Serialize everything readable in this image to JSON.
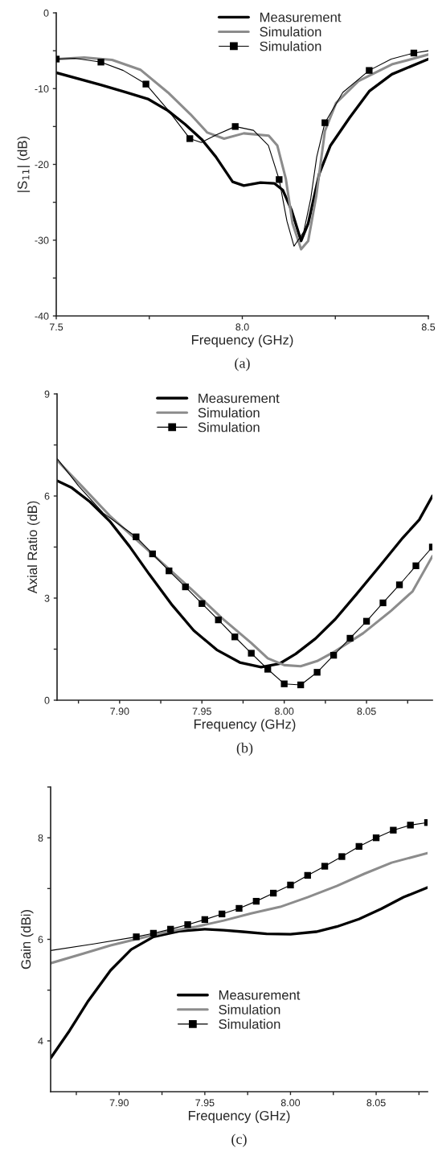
{
  "chart_data": [
    {
      "type": "line",
      "xlabel": "Frequency (GHz)",
      "ylabel": "|S$_{11}$| (dB)",
      "annotations": [
        "(a)"
      ],
      "legend": "top right",
      "grid": false,
      "xlim": [
        7.5,
        8.5
      ],
      "xticks": [
        {
          "value": 7.5,
          "label": "7.5"
        },
        {
          "value": 7.75,
          "label": null
        },
        {
          "value": 8.0,
          "label": "8.0"
        },
        {
          "value": 8.25,
          "label": null
        },
        {
          "value": 8.5,
          "label": "8.5"
        }
      ],
      "ylim": [
        -40,
        0
      ],
      "yticks": [
        -40,
        {
          "value": -35,
          "label": null
        },
        -30,
        {
          "value": -25,
          "label": null
        },
        -20,
        {
          "value": -15,
          "label": null
        },
        -10,
        {
          "value": -5,
          "label": null
        },
        0
      ],
      "series": [
        {
          "name": "Measurement",
          "color": "#000000",
          "x": [
            7.5,
            7.62,
            7.688,
            7.748,
            7.8,
            7.846,
            7.891,
            7.929,
            7.974,
            8.004,
            8.049,
            8.086,
            8.109,
            8.132,
            8.158,
            8.177,
            8.207,
            8.237,
            8.289,
            8.342,
            8.402,
            8.5
          ],
          "values": [
            -7.9,
            -9.5,
            -10.5,
            -11.4,
            -12.9,
            -14.7,
            -16.7,
            -19.0,
            -22.3,
            -22.8,
            -22.4,
            -22.5,
            -23.4,
            -26.0,
            -30.1,
            -27.8,
            -21.2,
            -17.5,
            -13.8,
            -10.3,
            -8.1,
            -6.1
          ]
        },
        {
          "name": "Simulation",
          "color": "#8c8c8c",
          "x": [
            7.5,
            7.575,
            7.65,
            7.726,
            7.8,
            7.861,
            7.906,
            7.951,
            8.004,
            8.071,
            8.094,
            8.117,
            8.135,
            8.158,
            8.177,
            8.199,
            8.222,
            8.252,
            8.312,
            8.402,
            8.5
          ],
          "values": [
            -6.1,
            -5.9,
            -6.2,
            -7.5,
            -10.5,
            -13.4,
            -15.8,
            -16.6,
            -15.9,
            -16.2,
            -17.5,
            -21.9,
            -27.8,
            -31.2,
            -30.1,
            -24.1,
            -15.6,
            -11.9,
            -9.0,
            -6.8,
            -5.5
          ]
        },
        {
          "color": "#000000",
          "x": [
            7.5,
            7.55,
            7.62,
            7.68,
            7.741,
            7.8,
            7.859,
            7.89,
            7.93,
            7.981,
            8.03,
            8.07,
            8.099,
            8.12,
            8.139,
            8.165,
            8.184,
            8.2,
            8.222,
            8.27,
            8.341,
            8.4,
            8.461,
            8.5
          ],
          "values": [
            -6.1,
            -6.0,
            -6.5,
            -7.6,
            -9.4,
            -12.8,
            -16.6,
            -17.1,
            -16.1,
            -15.0,
            -15.5,
            -17.5,
            -22.0,
            -27.5,
            -30.8,
            -28.9,
            -24.5,
            -19.0,
            -14.5,
            -10.5,
            -7.6,
            -6.1,
            -5.3,
            -5.0
          ]
        },
        {
          "name": "Simulation",
          "color": "#000000",
          "type": "scatter",
          "marker": "square",
          "x": [
            7.5,
            7.62,
            7.741,
            7.859,
            7.981,
            8.099,
            8.222,
            8.341,
            8.461
          ],
          "values": [
            -6.1,
            -6.5,
            -9.4,
            -16.6,
            -15.0,
            -22.0,
            -14.5,
            -7.6,
            -5.3
          ]
        }
      ]
    },
    {
      "type": "line",
      "xlabel": "Frequency (GHz)",
      "ylabel": "Axial Ratio (dB)",
      "annotations": [
        "(b)"
      ],
      "legend": "top",
      "grid": false,
      "xlim": [
        7.862,
        8.09
      ],
      "xticks": [
        {
          "value": 7.875,
          "label": null
        },
        {
          "value": 7.9,
          "label": "7.90"
        },
        {
          "value": 7.925,
          "label": null
        },
        {
          "value": 7.95,
          "label": "7.95"
        },
        {
          "value": 7.975,
          "label": null
        },
        {
          "value": 8.0,
          "label": "8.00"
        },
        {
          "value": 8.025,
          "label": null
        },
        {
          "value": 8.05,
          "label": "8.05"
        },
        {
          "value": 8.075,
          "label": null
        }
      ],
      "ylim": [
        0,
        9
      ],
      "yticks": [
        0,
        {
          "value": 1.5,
          "label": null
        },
        3,
        {
          "value": 4.5,
          "label": null
        },
        6,
        {
          "value": 7.5,
          "label": null
        },
        9
      ],
      "series": [
        {
          "name": "Measurement",
          "color": "#000000",
          "x": [
            7.862,
            7.871,
            7.882,
            7.894,
            7.906,
            7.918,
            7.932,
            7.945,
            7.959,
            7.973,
            7.986,
            7.997,
            8.007,
            8.019,
            8.031,
            8.044,
            8.058,
            8.072,
            8.082,
            8.09
          ],
          "values": [
            6.45,
            6.24,
            5.83,
            5.26,
            4.52,
            3.7,
            2.79,
            2.05,
            1.48,
            1.11,
            0.97,
            1.07,
            1.36,
            1.81,
            2.38,
            3.12,
            3.94,
            4.77,
            5.3,
            6.0
          ]
        },
        {
          "name": "Simulation",
          "color": "#8c8c8c",
          "x": [
            7.862,
            7.878,
            7.894,
            7.911,
            7.928,
            7.945,
            7.962,
            7.98,
            7.99,
            8.0,
            8.01,
            8.02,
            8.031,
            8.048,
            8.065,
            8.078,
            8.09
          ],
          "values": [
            7.05,
            6.24,
            5.42,
            4.68,
            3.94,
            3.2,
            2.42,
            1.68,
            1.23,
            1.03,
            1.0,
            1.15,
            1.44,
            1.97,
            2.63,
            3.2,
            4.23
          ]
        },
        {
          "color": "#000000",
          "x": [
            7.862,
            7.875,
            7.89,
            7.91,
            7.92,
            7.93,
            7.94,
            7.95,
            7.96,
            7.97,
            7.98,
            7.99,
            8.0,
            8.01,
            8.02,
            8.03,
            8.04,
            8.05,
            8.06,
            8.07,
            8.08,
            8.09
          ],
          "values": [
            7.1,
            6.3,
            5.5,
            4.8,
            4.3,
            3.8,
            3.33,
            2.84,
            2.36,
            1.86,
            1.38,
            0.91,
            0.48,
            0.45,
            0.82,
            1.32,
            1.82,
            2.32,
            2.86,
            3.39,
            3.95,
            4.5
          ]
        },
        {
          "name": "Simulation",
          "color": "#000000",
          "type": "scatter",
          "marker": "square",
          "x": [
            7.91,
            7.92,
            7.93,
            7.94,
            7.95,
            7.96,
            7.97,
            7.98,
            7.99,
            8.0,
            8.01,
            8.02,
            8.03,
            8.04,
            8.05,
            8.06,
            8.07,
            8.08,
            8.09
          ],
          "values": [
            4.8,
            4.3,
            3.8,
            3.33,
            2.84,
            2.36,
            1.86,
            1.38,
            0.91,
            0.48,
            0.45,
            0.82,
            1.32,
            1.82,
            2.32,
            2.86,
            3.39,
            3.95,
            4.5
          ]
        }
      ]
    },
    {
      "type": "line",
      "xlabel": "Frequency (GHz)",
      "ylabel": "Gain (dBi)",
      "annotations": [
        "(c)"
      ],
      "legend": "bottom",
      "grid": false,
      "xlim": [
        7.86,
        8.08
      ],
      "xticks": [
        {
          "value": 7.875,
          "label": null
        },
        {
          "value": 7.9,
          "label": "7.90"
        },
        {
          "value": 7.925,
          "label": null
        },
        {
          "value": 7.95,
          "label": "7.95"
        },
        {
          "value": 7.975,
          "label": null
        },
        {
          "value": 8.0,
          "label": "8.00"
        },
        {
          "value": 8.025,
          "label": null
        },
        {
          "value": 8.05,
          "label": "8.05"
        },
        {
          "value": 8.075,
          "label": null
        }
      ],
      "ylim": [
        3,
        9
      ],
      "yticks": [
        4,
        {
          "value": 5,
          "label": null
        },
        6,
        {
          "value": 7,
          "label": null
        },
        8,
        {
          "value": 9,
          "label": null
        }
      ],
      "series": [
        {
          "name": "Measurement",
          "color": "#000000",
          "x": [
            7.86,
            7.871,
            7.882,
            7.895,
            7.907,
            7.92,
            7.935,
            7.95,
            7.961,
            7.972,
            7.986,
            8.0,
            8.015,
            8.027,
            8.04,
            8.053,
            8.066,
            8.08
          ],
          "values": [
            3.66,
            4.2,
            4.79,
            5.39,
            5.8,
            6.05,
            6.16,
            6.2,
            6.18,
            6.15,
            6.11,
            6.1,
            6.15,
            6.25,
            6.4,
            6.6,
            6.83,
            7.02
          ]
        },
        {
          "name": "Simulation",
          "color": "#8c8c8c",
          "x": [
            7.86,
            7.879,
            7.895,
            7.912,
            7.928,
            7.945,
            7.961,
            7.977,
            7.994,
            8.01,
            8.027,
            8.043,
            8.059,
            8.08
          ],
          "values": [
            5.53,
            5.72,
            5.88,
            6.02,
            6.15,
            6.25,
            6.37,
            6.51,
            6.64,
            6.83,
            7.05,
            7.29,
            7.51,
            7.7
          ]
        },
        {
          "color": "#000000",
          "x": [
            7.86,
            7.885,
            7.91,
            7.92,
            7.93,
            7.94,
            7.95,
            7.96,
            7.97,
            7.98,
            7.99,
            8.0,
            8.01,
            8.02,
            8.03,
            8.04,
            8.05,
            8.06,
            8.07,
            8.08
          ],
          "values": [
            5.78,
            5.91,
            6.05,
            6.12,
            6.2,
            6.29,
            6.39,
            6.5,
            6.61,
            6.75,
            6.91,
            7.07,
            7.26,
            7.44,
            7.63,
            7.83,
            8.0,
            8.15,
            8.25,
            8.3
          ]
        },
        {
          "name": "Simulation",
          "color": "#000000",
          "type": "scatter",
          "marker": "square",
          "x": [
            7.91,
            7.92,
            7.93,
            7.94,
            7.95,
            7.96,
            7.97,
            7.98,
            7.99,
            8.0,
            8.01,
            8.02,
            8.03,
            8.04,
            8.05,
            8.06,
            8.07,
            8.08
          ],
          "values": [
            6.05,
            6.12,
            6.2,
            6.29,
            6.39,
            6.5,
            6.61,
            6.75,
            6.91,
            7.07,
            7.26,
            7.44,
            7.63,
            7.83,
            8.0,
            8.15,
            8.25,
            8.3
          ]
        }
      ]
    }
  ]
}
